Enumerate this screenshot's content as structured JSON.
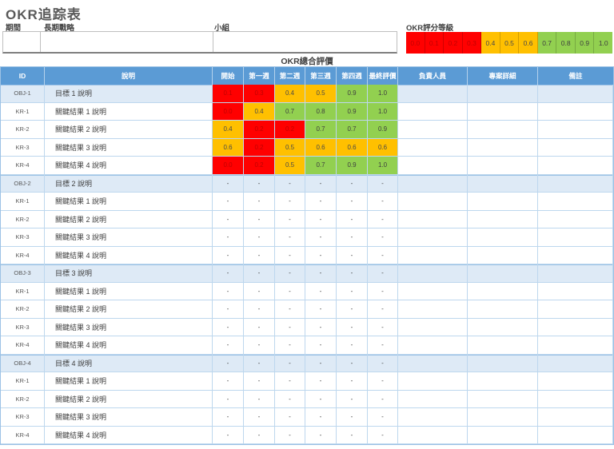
{
  "title": "OKR追踪表",
  "meta": {
    "period_label": "期間",
    "strategy_label": "長期戰略",
    "team_label": "小組",
    "period_value": "",
    "strategy_value": "",
    "team_value": ""
  },
  "legend": {
    "label": "OKR評分等級",
    "values": [
      "0.0",
      "0.1",
      "0.2",
      "0.3",
      "0.4",
      "0.5",
      "0.6",
      "0.7",
      "0.8",
      "0.9",
      "1.0"
    ],
    "thresholds": {
      "red_max": 0.3,
      "orange_max": 0.6
    }
  },
  "table": {
    "title": "OKR總合評價",
    "columns": [
      "ID",
      "說明",
      "開始",
      "第一週",
      "第二週",
      "第三週",
      "第四週",
      "最終評價",
      "負責人員",
      "專案詳細",
      "備註"
    ],
    "rows": [
      {
        "id": "OBJ-1",
        "type": "obj",
        "desc": "目標 1 說明",
        "scores": [
          "0.1",
          "0.3",
          "0.4",
          "0.5",
          "0.9",
          "1.0"
        ],
        "owner": "",
        "detail": "",
        "note": ""
      },
      {
        "id": "KR-1",
        "type": "kr",
        "desc": "關鍵結果 1 說明",
        "scores": [
          "0.0",
          "0.4",
          "0.7",
          "0.8",
          "0.9",
          "1.0"
        ],
        "owner": "",
        "detail": "",
        "note": ""
      },
      {
        "id": "KR-2",
        "type": "kr",
        "desc": "關鍵結果 2 說明",
        "scores": [
          "0.4",
          "0.2",
          "0.2",
          "0.7",
          "0.7",
          "0.9"
        ],
        "owner": "",
        "detail": "",
        "note": ""
      },
      {
        "id": "KR-3",
        "type": "kr",
        "desc": "關鍵結果 3 說明",
        "scores": [
          "0.6",
          "0.2",
          "0.5",
          "0.6",
          "0.6",
          "0.6"
        ],
        "owner": "",
        "detail": "",
        "note": ""
      },
      {
        "id": "KR-4",
        "type": "kr",
        "desc": "關鍵結果 4 說明",
        "scores": [
          "0.0",
          "0.2",
          "0.5",
          "0.7",
          "0.9",
          "1.0"
        ],
        "owner": "",
        "detail": "",
        "note": ""
      },
      {
        "id": "OBJ-2",
        "type": "obj",
        "desc": "目標 2 說明",
        "scores": [
          "-",
          "-",
          "-",
          "-",
          "-",
          "-"
        ],
        "owner": "",
        "detail": "",
        "note": ""
      },
      {
        "id": "KR-1",
        "type": "kr",
        "desc": "關鍵結果 1 說明",
        "scores": [
          "-",
          "-",
          "-",
          "-",
          "-",
          "-"
        ],
        "owner": "",
        "detail": "",
        "note": ""
      },
      {
        "id": "KR-2",
        "type": "kr",
        "desc": "關鍵結果 2 說明",
        "scores": [
          "-",
          "-",
          "-",
          "-",
          "-",
          "-"
        ],
        "owner": "",
        "detail": "",
        "note": ""
      },
      {
        "id": "KR-3",
        "type": "kr",
        "desc": "關鍵結果 3 說明",
        "scores": [
          "-",
          "-",
          "-",
          "-",
          "-",
          "-"
        ],
        "owner": "",
        "detail": "",
        "note": ""
      },
      {
        "id": "KR-4",
        "type": "kr",
        "desc": "關鍵結果 4 說明",
        "scores": [
          "-",
          "-",
          "-",
          "-",
          "-",
          "-"
        ],
        "owner": "",
        "detail": "",
        "note": ""
      },
      {
        "id": "OBJ-3",
        "type": "obj",
        "desc": "目標 3 說明",
        "scores": [
          "-",
          "-",
          "-",
          "-",
          "-",
          "-"
        ],
        "owner": "",
        "detail": "",
        "note": ""
      },
      {
        "id": "KR-1",
        "type": "kr",
        "desc": "關鍵結果 1 說明",
        "scores": [
          "-",
          "-",
          "-",
          "-",
          "-",
          "-"
        ],
        "owner": "",
        "detail": "",
        "note": ""
      },
      {
        "id": "KR-2",
        "type": "kr",
        "desc": "關鍵結果 2 說明",
        "scores": [
          "-",
          "-",
          "-",
          "-",
          "-",
          "-"
        ],
        "owner": "",
        "detail": "",
        "note": ""
      },
      {
        "id": "KR-3",
        "type": "kr",
        "desc": "關鍵結果 3 說明",
        "scores": [
          "-",
          "-",
          "-",
          "-",
          "-",
          "-"
        ],
        "owner": "",
        "detail": "",
        "note": ""
      },
      {
        "id": "KR-4",
        "type": "kr",
        "desc": "關鍵結果 4 說明",
        "scores": [
          "-",
          "-",
          "-",
          "-",
          "-",
          "-"
        ],
        "owner": "",
        "detail": "",
        "note": ""
      },
      {
        "id": "OBJ-4",
        "type": "obj",
        "desc": "目標 4 說明",
        "scores": [
          "-",
          "-",
          "-",
          "-",
          "-",
          "-"
        ],
        "owner": "",
        "detail": "",
        "note": ""
      },
      {
        "id": "KR-1",
        "type": "kr",
        "desc": "關鍵結果 1 說明",
        "scores": [
          "-",
          "-",
          "-",
          "-",
          "-",
          "-"
        ],
        "owner": "",
        "detail": "",
        "note": ""
      },
      {
        "id": "KR-2",
        "type": "kr",
        "desc": "關鍵結果 2 說明",
        "scores": [
          "-",
          "-",
          "-",
          "-",
          "-",
          "-"
        ],
        "owner": "",
        "detail": "",
        "note": ""
      },
      {
        "id": "KR-3",
        "type": "kr",
        "desc": "關鍵結果 3 說明",
        "scores": [
          "-",
          "-",
          "-",
          "-",
          "-",
          "-"
        ],
        "owner": "",
        "detail": "",
        "note": ""
      },
      {
        "id": "KR-4",
        "type": "kr",
        "desc": "關鍵結果 4 說明",
        "scores": [
          "-",
          "-",
          "-",
          "-",
          "-",
          "-"
        ],
        "owner": "",
        "detail": "",
        "note": ""
      }
    ]
  },
  "colors": {
    "header_bg": "#5B9BD5",
    "header_text": "#FFFFFF",
    "obj_row_bg": "#DEEAF6",
    "grid_border": "#BDD7EE",
    "table_border": "#9CC2E5",
    "red": "#FF0000",
    "red_text": "#C00000",
    "orange": "#FFC000",
    "orange_text": "#4A4A4A",
    "green": "#92D050",
    "green_text": "#3F3F3F",
    "dash_text": "#808080"
  }
}
